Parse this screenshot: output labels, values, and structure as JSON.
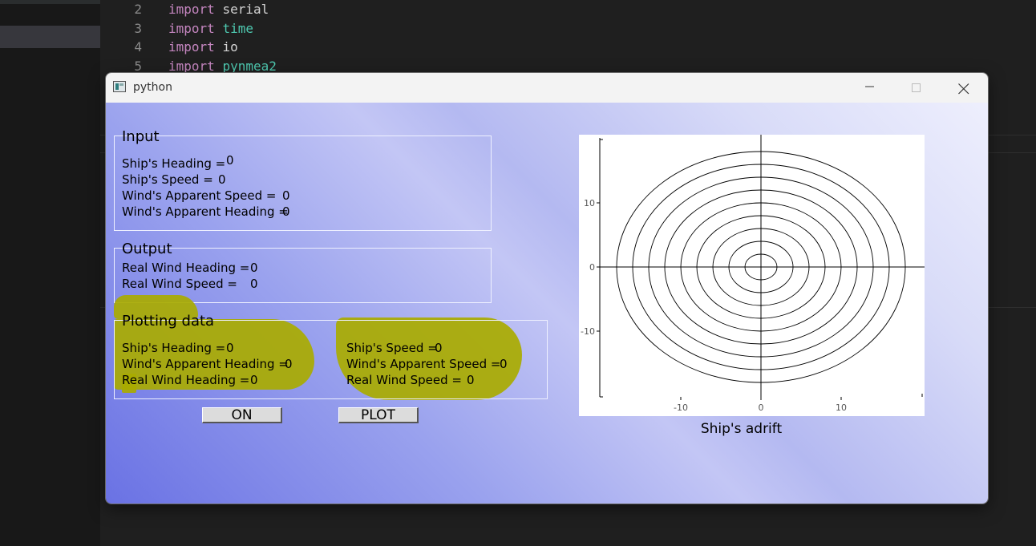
{
  "editor": {
    "lines": [
      {
        "num": "2",
        "kw": "import",
        "mod": "serial",
        "mod_color": "plain"
      },
      {
        "num": "3",
        "kw": "import",
        "mod": "time",
        "mod_color": "mod"
      },
      {
        "num": "4",
        "kw": "import",
        "mod": "io",
        "mod_color": "plain"
      },
      {
        "num": "5",
        "kw": "import",
        "mod": "pynmea2",
        "mod_color": "mod"
      }
    ]
  },
  "window": {
    "title": "python",
    "minimize_icon": "minimize-icon",
    "maximize_icon": "maximize-icon",
    "close_icon": "close-icon"
  },
  "input_group": {
    "title": "Input",
    "heading_label": "Ship's Heading =",
    "heading_value": "0",
    "speed_label": "Ship's Speed =",
    "speed_value": "0",
    "wind_speed_label": "Wind's Apparent Speed =",
    "wind_speed_value": "0",
    "wind_heading_label": "Wind's Apparent Heading =",
    "wind_heading_value": "0"
  },
  "output_group": {
    "title": "Output",
    "real_heading_label": "Real Wind Heading =",
    "real_heading_value": "0",
    "real_speed_label": "Real Wind Speed =",
    "real_speed_value": "0"
  },
  "plotting_group": {
    "title": "Plotting data",
    "heading_label": "Ship's Heading =",
    "heading_value": "0",
    "wind_heading_label": "Wind's Apparent Heading =",
    "wind_heading_value": "0",
    "real_heading_label": "Real Wind Heading =",
    "real_heading_value": "0",
    "speed_label": "Ship's Speed =",
    "speed_value": "0",
    "wind_speed_label": "Wind's Apparent Speed =",
    "wind_speed_value": "0",
    "real_speed_label": "Real Wind Speed =",
    "real_speed_value": "0"
  },
  "buttons": {
    "on_label": "ON",
    "plot_label": "PLOT"
  },
  "colors": {
    "highlight": "#a9ab00",
    "gradient_start": "#6a72e4",
    "gradient_end": "#eeeffd"
  },
  "chart_data": {
    "type": "line",
    "title": "Ship's adrift",
    "xlim": [
      -20,
      20
    ],
    "ylim": [
      -20,
      20
    ],
    "xticks": [
      -10,
      0,
      10
    ],
    "yticks": [
      10,
      0,
      -10
    ],
    "tick_labels_x": [
      "-10",
      "0",
      "10"
    ],
    "tick_labels_y": [
      "10",
      "0",
      "-10"
    ],
    "circle_radii": [
      2,
      4,
      6,
      8,
      10,
      12,
      14,
      16,
      18
    ],
    "grid": false
  }
}
